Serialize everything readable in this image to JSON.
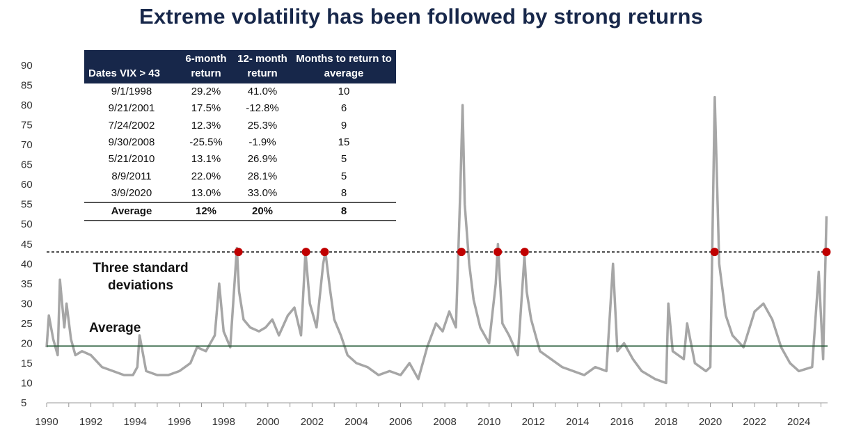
{
  "title": "Extreme volatility has been followed by strong returns",
  "annotations": {
    "three_sd": "Three standard deviations",
    "average": "Average"
  },
  "colors": {
    "title": "#17274a",
    "table_header": "#17274a",
    "series": "#a6a6a6",
    "marker": "#c00000",
    "average_line": "#1e5631",
    "threshold_line": "#000000"
  },
  "table": {
    "headers": [
      "Dates VIX > 43",
      "6-month return",
      "12- month return",
      "Months to return to average"
    ],
    "rows": [
      [
        "9/1/1998",
        "29.2%",
        "41.0%",
        "10"
      ],
      [
        "9/21/2001",
        "17.5%",
        "-12.8%",
        "6"
      ],
      [
        "7/24/2002",
        "12.3%",
        "25.3%",
        "9"
      ],
      [
        "9/30/2008",
        "-25.5%",
        "-1.9%",
        "15"
      ],
      [
        "5/21/2010",
        "13.1%",
        "26.9%",
        "5"
      ],
      [
        "8/9/2011",
        "22.0%",
        "28.1%",
        "5"
      ],
      [
        "3/9/2020",
        "13.0%",
        "33.0%",
        "8"
      ]
    ],
    "average_row": [
      "Average",
      "12%",
      "20%",
      "8"
    ]
  },
  "chart_data": {
    "type": "line",
    "title": "Extreme volatility has been followed by strong returns",
    "xlabel": "",
    "ylabel": "",
    "xlim": [
      1990,
      2025.3
    ],
    "ylim": [
      5,
      90
    ],
    "x_ticks": [
      1990,
      1992,
      1994,
      1996,
      1998,
      2000,
      2002,
      2004,
      2006,
      2008,
      2010,
      2012,
      2014,
      2016,
      2018,
      2020,
      2022,
      2024
    ],
    "y_ticks": [
      5,
      10,
      15,
      20,
      25,
      30,
      35,
      40,
      45,
      50,
      55,
      60,
      65,
      70,
      75,
      80,
      85,
      90
    ],
    "threshold_line": 43,
    "average_line": 19.3,
    "grid": false,
    "series": [
      {
        "x": [
          1990.0,
          1990.1,
          1990.3,
          1990.5,
          1990.6,
          1990.8,
          1990.9,
          1991.1,
          1991.3,
          1991.6,
          1992.0,
          1992.5,
          1993.0,
          1993.5,
          1993.9,
          1994.1,
          1994.2,
          1994.5,
          1995.0,
          1995.5,
          1996.0,
          1996.5,
          1996.8,
          1997.2,
          1997.6,
          1997.8,
          1998.0,
          1998.3,
          1998.6,
          1998.7,
          1998.9,
          1999.2,
          1999.6,
          1999.9,
          2000.2,
          2000.5,
          2000.9,
          2001.2,
          2001.5,
          2001.7,
          2001.9,
          2002.2,
          2002.5,
          2002.6,
          2002.8,
          2003.0,
          2003.3,
          2003.6,
          2004.0,
          2004.5,
          2005.0,
          2005.5,
          2006.0,
          2006.4,
          2006.8,
          2007.2,
          2007.6,
          2007.9,
          2008.2,
          2008.5,
          2008.7,
          2008.8,
          2008.9,
          2009.1,
          2009.3,
          2009.6,
          2010.0,
          2010.3,
          2010.4,
          2010.6,
          2010.9,
          2011.3,
          2011.6,
          2011.7,
          2011.9,
          2012.3,
          2012.8,
          2013.3,
          2013.8,
          2014.3,
          2014.8,
          2015.3,
          2015.6,
          2015.8,
          2016.1,
          2016.5,
          2016.9,
          2017.5,
          2018.0,
          2018.1,
          2018.3,
          2018.8,
          2018.95,
          2019.3,
          2019.8,
          2020.0,
          2020.2,
          2020.4,
          2020.7,
          2021.0,
          2021.5,
          2022.0,
          2022.4,
          2022.8,
          2023.2,
          2023.6,
          2024.0,
          2024.6,
          2024.9,
          2025.1,
          2025.25
        ],
        "y": [
          19,
          27,
          21,
          17,
          36,
          24,
          30,
          21,
          17,
          18,
          17,
          14,
          13,
          12,
          12,
          14,
          22,
          13,
          12,
          12,
          13,
          15,
          19,
          18,
          22,
          35,
          23,
          19,
          44,
          33,
          26,
          24,
          23,
          24,
          26,
          22,
          27,
          29,
          22,
          43,
          30,
          24,
          40,
          43,
          34,
          26,
          22,
          17,
          15,
          14,
          12,
          13,
          12,
          15,
          11,
          19,
          25,
          23,
          28,
          24,
          59,
          80,
          55,
          40,
          31,
          24,
          20,
          35,
          45,
          25,
          22,
          17,
          42,
          33,
          26,
          18,
          16,
          14,
          13,
          12,
          14,
          13,
          40,
          18,
          20,
          16,
          13,
          11,
          10,
          30,
          18,
          16,
          25,
          15,
          13,
          14,
          82,
          40,
          27,
          22,
          19,
          28,
          30,
          26,
          19,
          15,
          13,
          14,
          38,
          16,
          52
        ]
      }
    ]
  }
}
